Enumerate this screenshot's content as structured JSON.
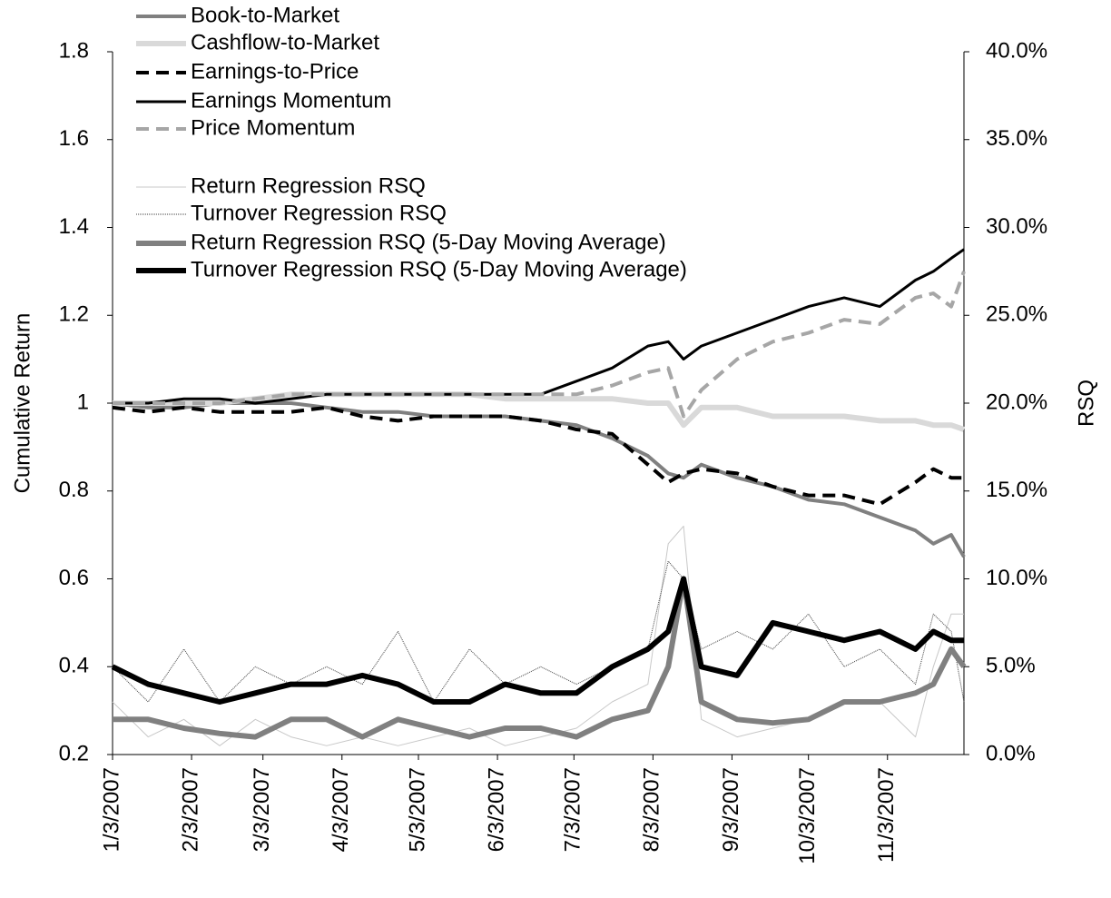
{
  "chart_data": {
    "type": "line",
    "y_label": "Cumulative Return",
    "y2_label": "RSQ",
    "x": [
      "1/3/2007",
      "1/17/2007",
      "1/31/2007",
      "2/14/2007",
      "2/28/2007",
      "3/14/2007",
      "3/28/2007",
      "4/11/2007",
      "4/25/2007",
      "5/9/2007",
      "5/23/2007",
      "6/6/2007",
      "6/20/2007",
      "7/4/2007",
      "7/18/2007",
      "8/1/2007",
      "8/9/2007",
      "8/15/2007",
      "8/22/2007",
      "9/5/2007",
      "9/19/2007",
      "10/3/2007",
      "10/17/2007",
      "10/31/2007",
      "11/14/2007",
      "11/21/2007",
      "11/28/2007",
      "12/3/2007"
    ],
    "xlim": [
      "1/3/2007",
      "12/3/2007"
    ],
    "xticks": [
      "1/3/2007",
      "2/3/2007",
      "3/3/2007",
      "4/3/2007",
      "5/3/2007",
      "6/3/2007",
      "7/3/2007",
      "8/3/2007",
      "9/3/2007",
      "10/3/2007",
      "11/3/2007"
    ],
    "ylim": [
      0.2,
      1.8
    ],
    "yticks": [
      0.2,
      0.4,
      0.6,
      0.8,
      1,
      1.2,
      1.4,
      1.6,
      1.8
    ],
    "y2lim": [
      0,
      40
    ],
    "y2ticks": [
      {
        "value": 0,
        "label": "0.0%"
      },
      {
        "value": 5,
        "label": "5.0%"
      },
      {
        "value": 10,
        "label": "10.0%"
      },
      {
        "value": 15,
        "label": "15.0%"
      },
      {
        "value": 20,
        "label": "20.0%"
      },
      {
        "value": 25,
        "label": "25.0%"
      },
      {
        "value": 30,
        "label": "30.0%"
      },
      {
        "value": 35,
        "label": "35.0%"
      },
      {
        "value": 40,
        "label": "40.0%"
      }
    ],
    "series": [
      {
        "name": "Book-to-Market",
        "color": "#808080",
        "width": 4,
        "dash": "none",
        "values": [
          1.0,
          0.99,
          0.99,
          1.0,
          1.0,
          1.0,
          0.99,
          0.98,
          0.98,
          0.97,
          0.97,
          0.97,
          0.96,
          0.95,
          0.92,
          0.88,
          0.84,
          0.83,
          0.86,
          0.83,
          0.81,
          0.78,
          0.77,
          0.74,
          0.71,
          0.68,
          0.7,
          0.65
        ]
      },
      {
        "name": "Cashflow-to-Market",
        "color": "#d9d9d9",
        "width": 6,
        "dash": "none",
        "values": [
          1.0,
          1.0,
          1.0,
          1.0,
          1.01,
          1.02,
          1.02,
          1.02,
          1.02,
          1.02,
          1.02,
          1.01,
          1.01,
          1.01,
          1.01,
          1.0,
          1.0,
          0.95,
          0.99,
          0.99,
          0.97,
          0.97,
          0.97,
          0.96,
          0.96,
          0.95,
          0.95,
          0.94
        ]
      },
      {
        "name": "Earnings-to-Price",
        "color": "#000000",
        "width": 4,
        "dash": "14 8",
        "values": [
          0.99,
          0.98,
          0.99,
          0.98,
          0.98,
          0.98,
          0.99,
          0.97,
          0.96,
          0.97,
          0.97,
          0.97,
          0.96,
          0.94,
          0.93,
          0.86,
          0.82,
          0.84,
          0.85,
          0.84,
          0.81,
          0.79,
          0.79,
          0.77,
          0.82,
          0.85,
          0.83,
          0.83
        ]
      },
      {
        "name": "Earnings Momentum",
        "color": "#000000",
        "width": 3,
        "dash": "none",
        "values": [
          1.0,
          1.0,
          1.01,
          1.01,
          1.0,
          1.01,
          1.02,
          1.02,
          1.02,
          1.02,
          1.02,
          1.02,
          1.02,
          1.05,
          1.08,
          1.13,
          1.14,
          1.1,
          1.13,
          1.16,
          1.19,
          1.22,
          1.24,
          1.22,
          1.28,
          1.3,
          1.33,
          1.35
        ]
      },
      {
        "name": "Price Momentum",
        "color": "#a6a6a6",
        "width": 4,
        "dash": "14 8",
        "values": [
          1.0,
          1.0,
          1.0,
          1.0,
          1.01,
          1.02,
          1.02,
          1.02,
          1.02,
          1.02,
          1.02,
          1.02,
          1.02,
          1.02,
          1.04,
          1.07,
          1.08,
          0.97,
          1.03,
          1.1,
          1.14,
          1.16,
          1.19,
          1.18,
          1.24,
          1.25,
          1.22,
          1.3
        ]
      },
      {
        "name": "Return Regression RSQ",
        "color": "#c8c8c8",
        "width": 1,
        "dash": "none",
        "axis": "y2",
        "values": [
          3,
          1,
          2,
          0.5,
          2,
          1,
          0.5,
          1,
          0.5,
          1,
          1.5,
          0.5,
          1,
          1.5,
          3,
          4,
          12,
          13,
          2,
          1,
          1.5,
          2,
          3,
          3,
          1,
          5,
          8,
          8
        ]
      },
      {
        "name": "Turnover Regression RSQ",
        "color": "#404040",
        "width": 1,
        "dash": "1 1",
        "axis": "y2",
        "values": [
          5,
          3,
          6,
          3,
          5,
          4,
          5,
          4,
          7,
          3,
          6,
          4,
          5,
          4,
          5,
          6,
          11,
          10,
          6,
          7,
          6,
          8,
          5,
          6,
          4,
          8,
          7,
          3
        ]
      },
      {
        "name": "Return Regression RSQ (5-Day Moving Average)",
        "color": "#808080",
        "width": 6,
        "dash": "none",
        "axis": "y2",
        "values": [
          2,
          2,
          1.5,
          1.2,
          1,
          2,
          2,
          1,
          2,
          1.5,
          1,
          1.5,
          1.5,
          1,
          2,
          2.5,
          5,
          10,
          3,
          2,
          1.8,
          2,
          3,
          3,
          3.5,
          4,
          6,
          5
        ]
      },
      {
        "name": "Turnover Regression RSQ (5-Day Moving Average)",
        "color": "#000000",
        "width": 6,
        "dash": "none",
        "axis": "y2",
        "values": [
          5,
          4,
          3.5,
          3,
          3.5,
          4,
          4,
          4.5,
          4,
          3,
          3,
          4,
          3.5,
          3.5,
          5,
          6,
          7,
          10,
          5,
          4.5,
          7.5,
          7,
          6.5,
          7,
          6,
          7,
          6.5,
          6.5
        ]
      }
    ]
  }
}
